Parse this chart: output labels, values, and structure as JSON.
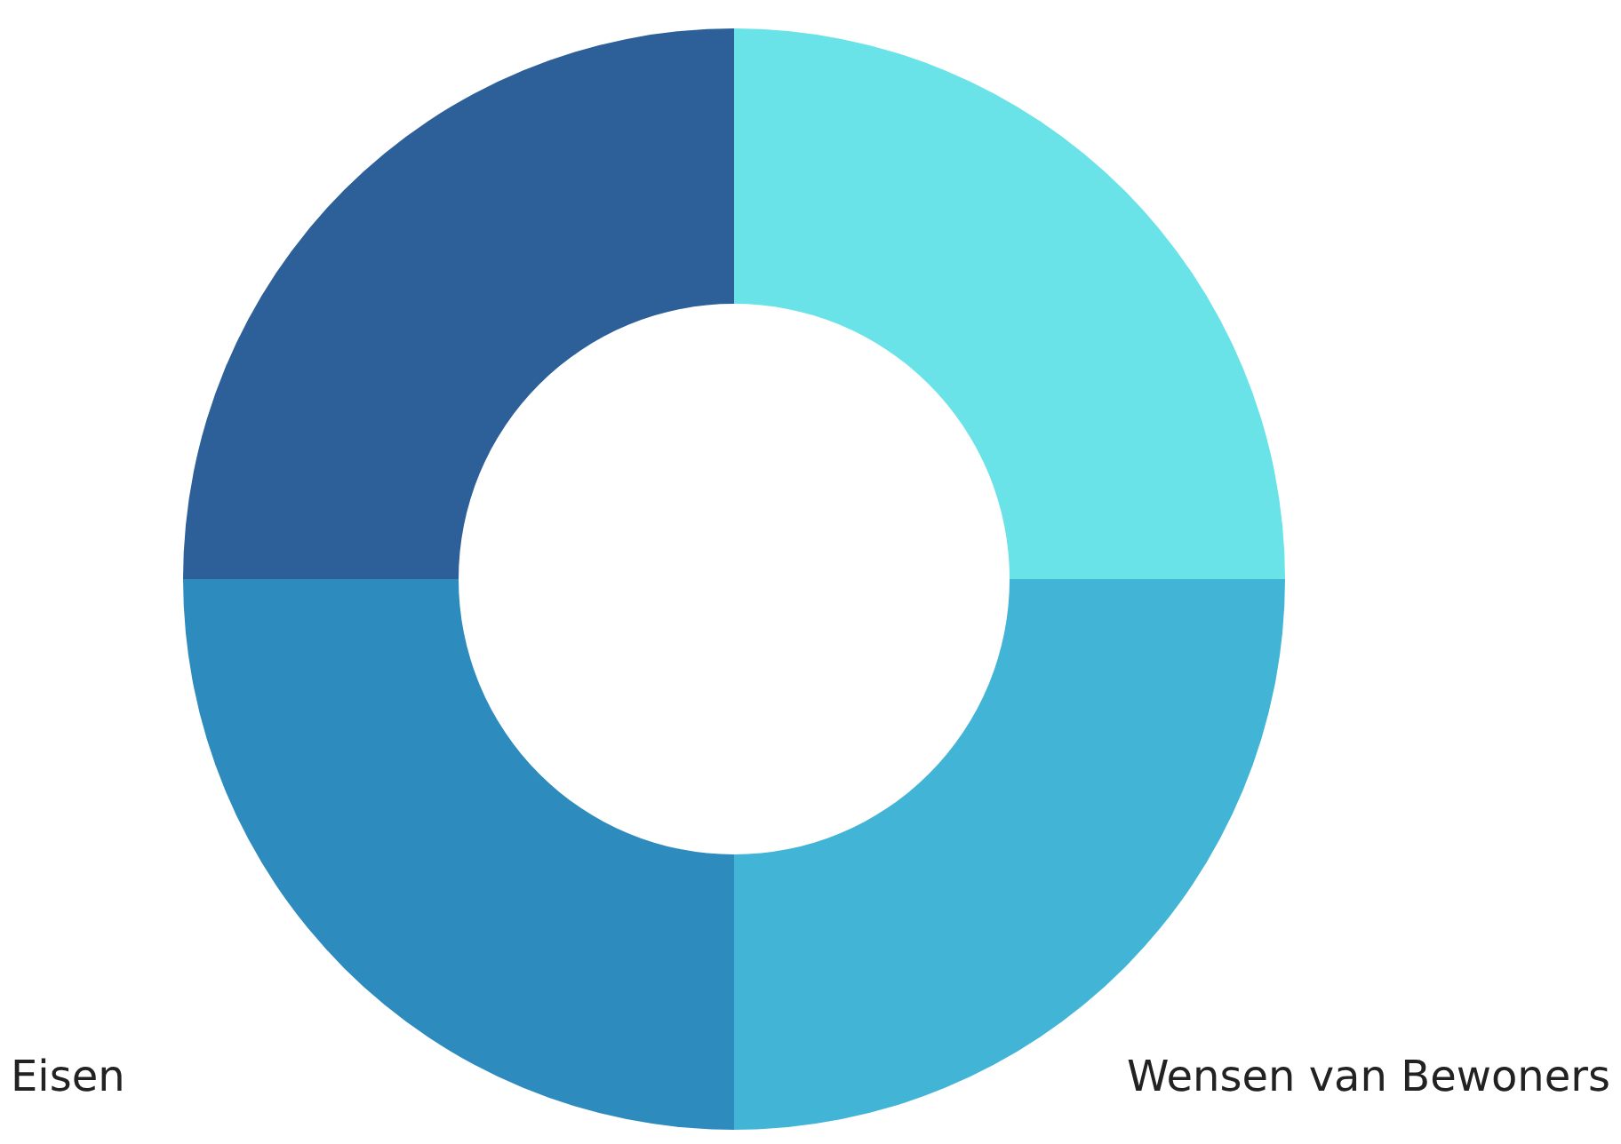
{
  "chart_data": {
    "type": "donut",
    "categories": [
      null,
      "Wensen van Bewoners",
      "Eisen",
      null
    ],
    "values": [
      25,
      25,
      25,
      25
    ],
    "colors": [
      "#6ae3e8",
      "#42b5d6",
      "#2e8bbd",
      "#2d5f98"
    ],
    "legend": false
  }
}
